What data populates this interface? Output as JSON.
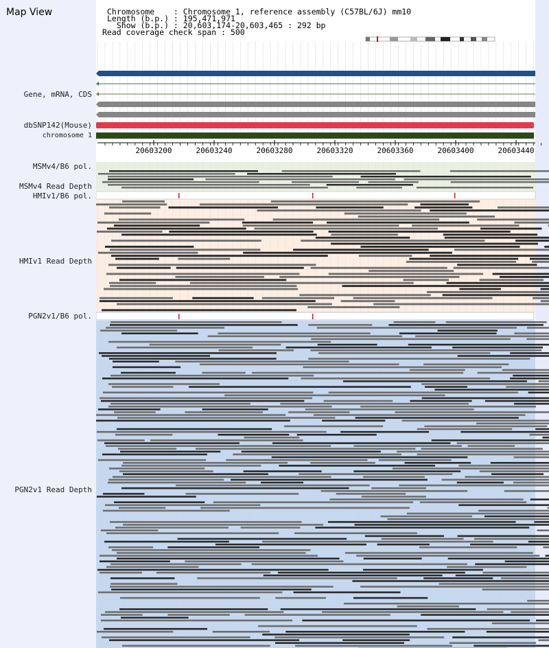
{
  "view_title": "Map View",
  "header": {
    "chromosome_line": "Chromosome    : Chromosome 1, reference assembly (C57BL/6J) mm10",
    "length_line": "Length (b.p.) : 195,471,971",
    "show_line": "  Show (b.p.) : 20,603,174-20,603,465 : 292 bp",
    "coverage_line": "Read coverage check span : 500"
  },
  "tracks": {
    "gene": "Gene, mRNA, CDS",
    "dbsnp": "dbSNP142(Mouse)",
    "chromosome": "chromosome 1",
    "msm_pol": "MSMv4/B6 pol.",
    "msm_depth": "MSMv4 Read Depth",
    "hmi_pol": "HMIv1/B6 pol.",
    "hmi_depth": "HMIv1 Read Depth",
    "pgn_pol": "PGN2v1/B6 pol.",
    "pgn_depth": "PGN2v1 Read Depth"
  },
  "ruler": {
    "ticks": [
      "20603200",
      "20603240",
      "20603280",
      "20603320",
      "20603360",
      "20603400",
      "20603440"
    ]
  },
  "colors": {
    "sidebar": "#eef0fb",
    "msm_bg": "#eaf0e1",
    "hmi_bg": "#fdeee3",
    "pgn_bg": "#c6d8ef",
    "gene_blue": "#1f4f8c",
    "snp_red": "#e3394a",
    "chrom_green": "#2c4a18",
    "read_dark": "#2a2a2a",
    "read_gray": "#6e6e6e",
    "pol_mark": "#cc2222"
  }
}
